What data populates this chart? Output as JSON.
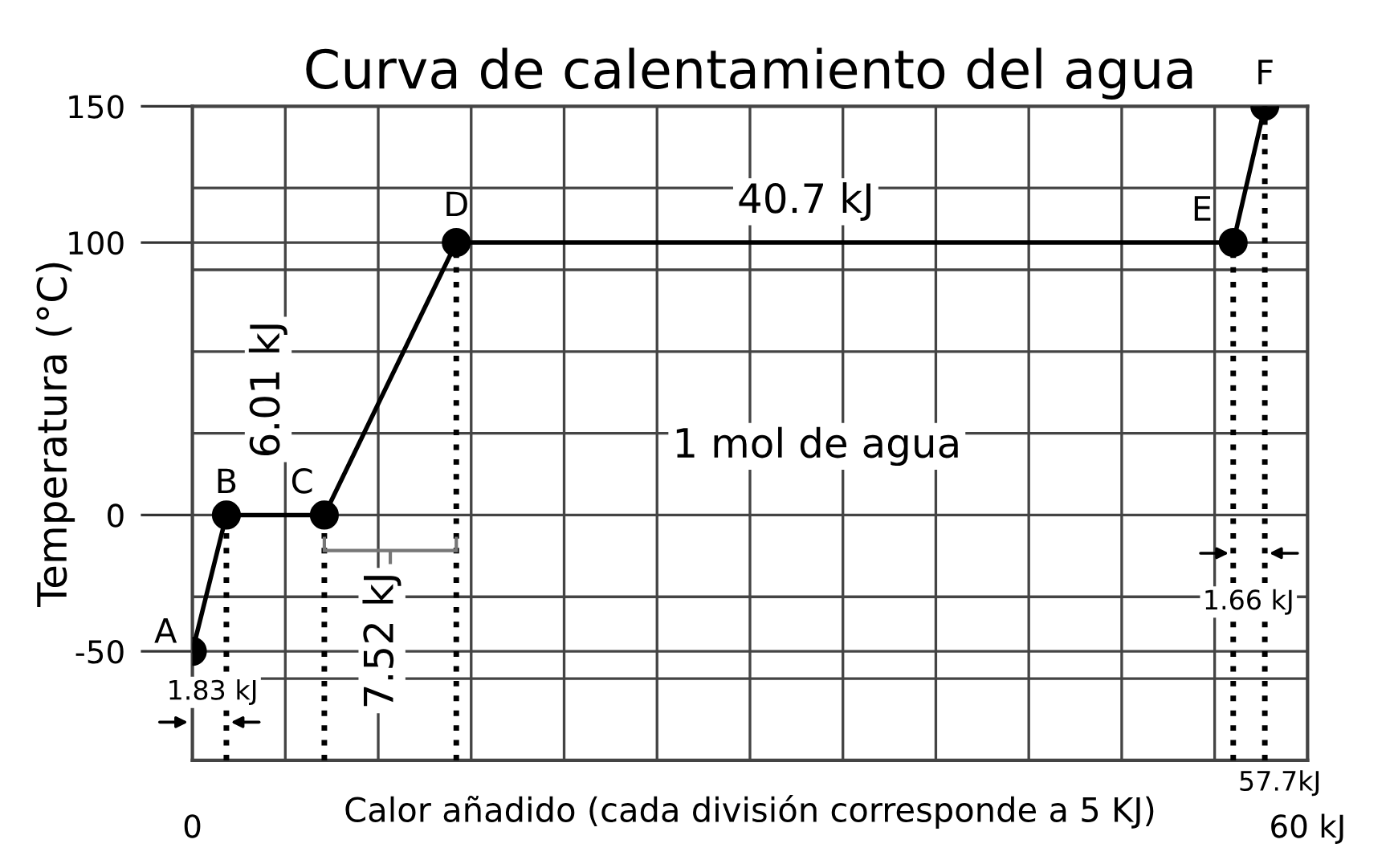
{
  "chart_data": {
    "type": "line",
    "title": "Curva de calentamiento del agua",
    "xlabel": "Calor añadido (cada división corresponde a 5 KJ)",
    "ylabel": "Temperatura (°C)",
    "x": [
      0,
      1.83,
      7.1,
      14.2,
      56.0,
      57.7
    ],
    "series": [
      {
        "color": "#000000",
        "values": [
          -50,
          0,
          0,
          100,
          100,
          150
        ]
      }
    ],
    "marker": "circle",
    "line_style": "solid",
    "grid": true,
    "legend": false,
    "xlim": [
      0,
      60
    ],
    "ylim": [
      -90,
      150
    ],
    "xticks": [
      0,
      {
        "value": 5,
        "label": null
      },
      {
        "value": 10,
        "label": null
      },
      {
        "value": 15,
        "label": null
      },
      {
        "value": 20,
        "label": null
      },
      {
        "value": 25,
        "label": null
      },
      {
        "value": 30,
        "label": null
      },
      {
        "value": 35,
        "label": null
      },
      {
        "value": 40,
        "label": null
      },
      {
        "value": 45,
        "label": null
      },
      {
        "value": 50,
        "label": null
      },
      {
        "value": 55,
        "label": null
      },
      {
        "value": 60,
        "label": "60 kJ"
      }
    ],
    "yticks": [
      {
        "value": -90,
        "label": null
      },
      {
        "value": -60,
        "label": null
      },
      -50,
      {
        "value": -30,
        "label": null
      },
      0,
      {
        "value": 30,
        "label": null
      },
      {
        "value": 60,
        "label": null
      },
      {
        "value": 90,
        "label": null
      },
      100,
      {
        "value": 120,
        "label": null
      },
      150
    ],
    "ref_lines": [
      {
        "axis": "x",
        "value": 1.83,
        "line_style": "dotted"
      },
      {
        "axis": "x",
        "value": 7.1,
        "line_style": "dotted"
      },
      {
        "axis": "x",
        "value": 14.2,
        "line_style": "dotted"
      },
      {
        "axis": "x",
        "value": 56.0,
        "line_style": "dotted"
      },
      {
        "axis": "x",
        "value": 57.7,
        "line_style": "dotted"
      }
    ],
    "annotations": [
      {
        "text": "A",
        "x": 0,
        "y": -50
      },
      {
        "text": "B",
        "x": 1.83,
        "y": 0
      },
      {
        "text": "C",
        "x": 7.1,
        "y": 0
      },
      {
        "text": "D",
        "x": 14.2,
        "y": 100
      },
      {
        "text": "E",
        "x": 56.0,
        "y": 100
      },
      {
        "text": "F",
        "x": 57.7,
        "y": 150
      },
      "40.7 kJ",
      "6.01 kJ",
      "7.52 kJ",
      "1.83 kJ",
      "1.66 kJ",
      "57.7kJ",
      "1 mol de agua"
    ]
  }
}
